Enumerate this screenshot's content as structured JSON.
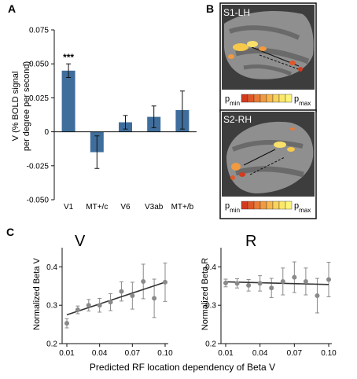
{
  "panels": {
    "a_letter": "A",
    "b_letter": "B",
    "c_letter": "C"
  },
  "brain": {
    "top_label": "S1-LH",
    "bottom_label": "S2-RH",
    "p_min": "p",
    "p_min_sub": "min",
    "p_max": "p",
    "p_max_sub": "max",
    "colorbar": [
      "#d23b1e",
      "#e0582a",
      "#ea7a35",
      "#f19a40",
      "#f6b84c",
      "#f9d35a",
      "#fbe86a",
      "#fdf47a"
    ]
  },
  "chart_data": [
    {
      "type": "bar",
      "ylabel_line1": "V (% BOLD signal",
      "ylabel_line2": "per degree per second)",
      "categories": [
        "V1",
        "MT+/c",
        "V6",
        "V3ab",
        "MT+/b"
      ],
      "values": [
        0.045,
        -0.015,
        0.007,
        0.011,
        0.016
      ],
      "errors": [
        0.005,
        0.012,
        0.005,
        0.008,
        0.014
      ],
      "significance": [
        "***",
        "",
        "",
        "",
        ""
      ],
      "ylim": [
        -0.05,
        0.075
      ],
      "yticks": [
        "0.075",
        "0.050",
        "0.025",
        "0",
        "-0.025",
        "-0.050"
      ],
      "bar_color": "#3f6e9c"
    },
    {
      "type": "scatter",
      "title": "V",
      "ylabel": "Normalized Beta V",
      "x": [
        0.01,
        0.02,
        0.03,
        0.04,
        0.05,
        0.06,
        0.07,
        0.08,
        0.09,
        0.1
      ],
      "y": [
        0.253,
        0.288,
        0.3,
        0.3,
        0.308,
        0.336,
        0.325,
        0.362,
        0.318,
        0.36
      ],
      "err": [
        0.012,
        0.01,
        0.015,
        0.018,
        0.022,
        0.025,
        0.035,
        0.045,
        0.05,
        0.05
      ],
      "fit": [
        [
          0.01,
          0.275
        ],
        [
          0.1,
          0.36
        ]
      ],
      "ylim": [
        0.2,
        0.45
      ],
      "yticks": [
        "0.4",
        "0.3",
        "0.2"
      ],
      "xticks": [
        "0.01",
        "0.04",
        "0.07",
        "0.10"
      ]
    },
    {
      "type": "scatter",
      "title": "R",
      "ylabel": "Normalized Beta R",
      "x": [
        0.01,
        0.02,
        0.03,
        0.04,
        0.05,
        0.06,
        0.07,
        0.08,
        0.09,
        0.1
      ],
      "y": [
        0.358,
        0.357,
        0.352,
        0.357,
        0.345,
        0.362,
        0.373,
        0.362,
        0.325,
        0.367
      ],
      "err": [
        0.01,
        0.012,
        0.015,
        0.02,
        0.025,
        0.035,
        0.04,
        0.035,
        0.045,
        0.045
      ],
      "fit": [
        [
          0.01,
          0.361
        ],
        [
          0.1,
          0.354
        ]
      ],
      "ylim": [
        0.2,
        0.45
      ],
      "yticks": [
        "0.4",
        "0.3",
        "0.2"
      ],
      "xticks": [
        "0.01",
        "0.04",
        "0.07",
        "0.10"
      ]
    }
  ],
  "shared_xlabel": "Predicted RF location dependency of Beta V"
}
